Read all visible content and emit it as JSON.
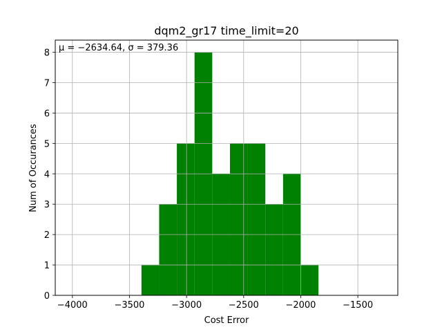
{
  "chart_data": {
    "type": "bar",
    "title": "dqm2_gr17 time_limit=20",
    "xlabel": "Cost Error",
    "ylabel": "Num of Occurances",
    "annotation": "μ = −2634.64,  σ = 379.36",
    "xlim": [
      -4150,
      -1150
    ],
    "ylim": [
      0,
      8.4
    ],
    "xticks": [
      -4000,
      -3500,
      -3000,
      -2500,
      -2000,
      -1500
    ],
    "xtick_labels": [
      "−4000",
      "−3500",
      "−3000",
      "−2500",
      "−2000",
      "−1500"
    ],
    "yticks": [
      0,
      1,
      2,
      3,
      4,
      5,
      6,
      7,
      8
    ],
    "ytick_labels": [
      "0",
      "1",
      "2",
      "3",
      "4",
      "5",
      "6",
      "7",
      "8"
    ],
    "grid": true,
    "bar_color": "#008000",
    "bins": [
      {
        "x0": -3395,
        "x1": -3240,
        "count": 1
      },
      {
        "x0": -3240,
        "x1": -3085,
        "count": 3
      },
      {
        "x0": -3085,
        "x1": -2930,
        "count": 5
      },
      {
        "x0": -2930,
        "x1": -2775,
        "count": 8
      },
      {
        "x0": -2775,
        "x1": -2620,
        "count": 4
      },
      {
        "x0": -2620,
        "x1": -2465,
        "count": 5
      },
      {
        "x0": -2465,
        "x1": -2310,
        "count": 5
      },
      {
        "x0": -2310,
        "x1": -2155,
        "count": 3
      },
      {
        "x0": -2155,
        "x1": -2000,
        "count": 4
      },
      {
        "x0": -2000,
        "x1": -1845,
        "count": 1
      }
    ]
  }
}
